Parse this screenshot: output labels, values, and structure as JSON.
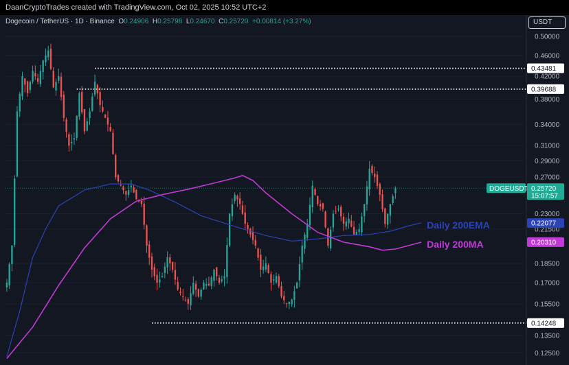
{
  "header": {
    "credit": "DaanCryptoTrades created with TradingView.com, Oct 02, 2025 10:52 UTC+2"
  },
  "legend": {
    "symbol": "Dogecoin / TetherUS · 1D · Binance",
    "open_key": "O",
    "open": "0.24906",
    "high_key": "H",
    "high": "0.25798",
    "low_key": "L",
    "low": "0.24670",
    "close_key": "C",
    "close": "0.25720",
    "change": "+0.00814 (+3.27%)"
  },
  "axis": {
    "unit": "USDT"
  },
  "colors": {
    "up": "#26a69a",
    "down": "#ef5350",
    "ema": "#2b43b6",
    "ma": "#c13ad6",
    "bg": "#131722",
    "price_tag": "#22ab94"
  },
  "chart_data": {
    "type": "candlestick",
    "symbol": "DOGEUSDT",
    "y_scale": "log",
    "ylim": [
      0.12,
      0.52
    ],
    "x_count": 200,
    "yticks": [
      {
        "v": 0.5,
        "label": "0.50000"
      },
      {
        "v": 0.46,
        "label": "0.46000"
      },
      {
        "v": 0.42,
        "label": "0.42000"
      },
      {
        "v": 0.38,
        "label": "0.38000"
      },
      {
        "v": 0.34,
        "label": "0.34000"
      },
      {
        "v": 0.31,
        "label": "0.31000"
      },
      {
        "v": 0.29,
        "label": "0.29000"
      },
      {
        "v": 0.27,
        "label": "0.27000"
      },
      {
        "v": 0.23,
        "label": "0.23000"
      },
      {
        "v": 0.215,
        "label": "0.21500"
      },
      {
        "v": 0.185,
        "label": "0.18500"
      },
      {
        "v": 0.17,
        "label": "0.17000"
      },
      {
        "v": 0.155,
        "label": "0.15500"
      },
      {
        "v": 0.135,
        "label": "0.13500"
      },
      {
        "v": 0.125,
        "label": "0.12500"
      }
    ],
    "levels": [
      {
        "value": 0.43481,
        "label": "0.43481",
        "x_start": 34
      },
      {
        "value": 0.39688,
        "label": "0.39688",
        "x_start": 27
      },
      {
        "value": 0.14248,
        "label": "0.14248",
        "x_start": 56
      }
    ],
    "last_price": {
      "name": "DOGEUSDT",
      "value": 0.2572,
      "label": "0.25720",
      "countdown": "15:07:57"
    },
    "ema200": {
      "name": "Daily 200EMA",
      "label": "0.22077",
      "value": 0.22077,
      "points": [
        [
          0,
          0.123
        ],
        [
          5,
          0.15
        ],
        [
          10,
          0.19
        ],
        [
          15,
          0.215
        ],
        [
          20,
          0.238
        ],
        [
          30,
          0.255
        ],
        [
          40,
          0.262
        ],
        [
          48,
          0.262
        ],
        [
          55,
          0.255
        ],
        [
          65,
          0.242
        ],
        [
          75,
          0.228
        ],
        [
          90,
          0.216
        ],
        [
          100,
          0.209
        ],
        [
          110,
          0.204
        ],
        [
          120,
          0.206
        ],
        [
          130,
          0.209
        ],
        [
          140,
          0.21
        ],
        [
          148,
          0.213
        ],
        [
          155,
          0.218
        ],
        [
          160,
          0.221
        ]
      ]
    },
    "ma200": {
      "name": "Daily 200MA",
      "label": "0.20310",
      "value": 0.2031,
      "points": [
        [
          0,
          0.122
        ],
        [
          10,
          0.14
        ],
        [
          20,
          0.168
        ],
        [
          30,
          0.198
        ],
        [
          40,
          0.225
        ],
        [
          50,
          0.243
        ],
        [
          60,
          0.25
        ],
        [
          70,
          0.256
        ],
        [
          80,
          0.263
        ],
        [
          88,
          0.269
        ],
        [
          91,
          0.272
        ],
        [
          95,
          0.266
        ],
        [
          100,
          0.252
        ],
        [
          110,
          0.23
        ],
        [
          120,
          0.212
        ],
        [
          130,
          0.203
        ],
        [
          140,
          0.199
        ],
        [
          145,
          0.196
        ],
        [
          150,
          0.197
        ],
        [
          160,
          0.203
        ]
      ]
    },
    "path": [
      [
        0,
        0.17
      ],
      [
        2,
        0.2
      ],
      [
        4,
        0.36
      ],
      [
        6,
        0.42
      ],
      [
        8,
        0.39
      ],
      [
        10,
        0.43
      ],
      [
        12,
        0.41
      ],
      [
        14,
        0.45
      ],
      [
        16,
        0.47
      ],
      [
        18,
        0.4
      ],
      [
        20,
        0.42
      ],
      [
        22,
        0.35
      ],
      [
        24,
        0.31
      ],
      [
        26,
        0.32
      ],
      [
        28,
        0.39
      ],
      [
        30,
        0.33
      ],
      [
        32,
        0.36
      ],
      [
        34,
        0.41
      ],
      [
        36,
        0.37
      ],
      [
        38,
        0.35
      ],
      [
        40,
        0.33
      ],
      [
        42,
        0.27
      ],
      [
        44,
        0.26
      ],
      [
        46,
        0.25
      ],
      [
        48,
        0.26
      ],
      [
        50,
        0.245
      ],
      [
        52,
        0.24
      ],
      [
        54,
        0.2
      ],
      [
        56,
        0.18
      ],
      [
        58,
        0.17
      ],
      [
        60,
        0.175
      ],
      [
        62,
        0.19
      ],
      [
        64,
        0.18
      ],
      [
        66,
        0.165
      ],
      [
        68,
        0.16
      ],
      [
        70,
        0.155
      ],
      [
        72,
        0.17
      ],
      [
        74,
        0.16
      ],
      [
        76,
        0.17
      ],
      [
        78,
        0.168
      ],
      [
        80,
        0.18
      ],
      [
        82,
        0.17
      ],
      [
        84,
        0.175
      ],
      [
        86,
        0.23
      ],
      [
        88,
        0.25
      ],
      [
        90,
        0.24
      ],
      [
        92,
        0.22
      ],
      [
        94,
        0.21
      ],
      [
        96,
        0.2
      ],
      [
        98,
        0.18
      ],
      [
        100,
        0.185
      ],
      [
        102,
        0.17
      ],
      [
        104,
        0.175
      ],
      [
        106,
        0.16
      ],
      [
        108,
        0.155
      ],
      [
        110,
        0.158
      ],
      [
        112,
        0.17
      ],
      [
        114,
        0.2
      ],
      [
        116,
        0.22
      ],
      [
        118,
        0.26
      ],
      [
        120,
        0.24
      ],
      [
        122,
        0.235
      ],
      [
        124,
        0.2
      ],
      [
        126,
        0.23
      ],
      [
        128,
        0.235
      ],
      [
        130,
        0.22
      ],
      [
        132,
        0.225
      ],
      [
        134,
        0.21
      ],
      [
        136,
        0.215
      ],
      [
        138,
        0.24
      ],
      [
        140,
        0.28
      ],
      [
        142,
        0.27
      ],
      [
        144,
        0.25
      ],
      [
        146,
        0.22
      ],
      [
        148,
        0.24
      ],
      [
        150,
        0.2572
      ]
    ],
    "annotations": [
      {
        "text": "Daily 200EMA",
        "color": "#2b43b6"
      },
      {
        "text": "Daily 200MA",
        "color": "#c13ad6"
      }
    ]
  }
}
